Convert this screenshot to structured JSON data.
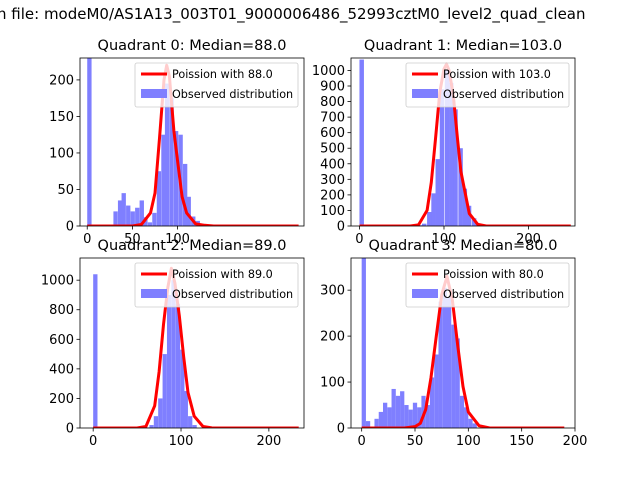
{
  "figure": {
    "suptitle": "n file: modeM0/AS1A13_003T01_9000006486_52993cztM0_level2_quad_clean"
  },
  "colors": {
    "hist": "#7f7fff",
    "poisson": "#ff0000",
    "background": "#ffffff"
  },
  "chart_data": [
    {
      "type": "bar",
      "title": "Quadrant 0: Median=88.0",
      "xlim": [
        -8,
        240
      ],
      "ylim": [
        0,
        230
      ],
      "xticks": [
        0,
        50,
        100
      ],
      "yticks": [
        0,
        50,
        100,
        150,
        200
      ],
      "bin_width": 4.8,
      "hist": {
        "name": "Observed distribution",
        "x": [
          0,
          29,
          34,
          38,
          43,
          48,
          53,
          58,
          62,
          67,
          72,
          77,
          82,
          86,
          91,
          96,
          101,
          106,
          110,
          115,
          120,
          125,
          130,
          134,
          139
        ],
        "y": [
          230,
          20,
          35,
          45,
          28,
          20,
          25,
          35,
          12,
          5,
          18,
          75,
          125,
          195,
          175,
          130,
          125,
          85,
          40,
          13,
          7,
          3,
          2,
          1,
          1
        ]
      },
      "poisson": {
        "name": "Poission with 88.0",
        "x": [
          0,
          50,
          60,
          70,
          75,
          80,
          85,
          88,
          91,
          96,
          100,
          105,
          110,
          120,
          130,
          140,
          150,
          160,
          200,
          234
        ],
        "y": [
          0,
          0,
          2,
          18,
          45,
          120,
          200,
          220,
          205,
          130,
          90,
          40,
          18,
          3,
          1,
          0,
          0,
          0,
          0,
          0
        ]
      }
    },
    {
      "type": "bar",
      "title": "Quadrant 1: Median=103.0",
      "xlim": [
        -10,
        255
      ],
      "ylim": [
        0,
        1080
      ],
      "xticks": [
        0,
        100,
        200
      ],
      "yticks": [
        0,
        100,
        200,
        300,
        400,
        500,
        600,
        700,
        800,
        900,
        1000
      ],
      "bin_width": 5.3,
      "hist": {
        "name": "Observed distribution",
        "x": [
          0,
          69,
          74,
          80,
          85,
          90,
          95,
          101,
          106,
          111,
          117,
          122,
          127,
          133,
          138
        ],
        "y": [
          1070,
          5,
          15,
          90,
          210,
          430,
          880,
          1000,
          920,
          750,
          500,
          240,
          130,
          50,
          12
        ]
      },
      "poisson": {
        "name": "Poission with 103.0",
        "x": [
          0,
          60,
          70,
          80,
          85,
          90,
          95,
          100,
          103,
          106,
          111,
          116,
          120,
          130,
          140,
          150,
          200,
          250
        ],
        "y": [
          0,
          0,
          8,
          100,
          280,
          560,
          860,
          1010,
          1040,
          1000,
          840,
          560,
          350,
          80,
          10,
          0,
          0,
          0
        ]
      }
    },
    {
      "type": "bar",
      "title": "Quadrant 2: Median=89.0",
      "xlim": [
        -15,
        240
      ],
      "ylim": [
        0,
        1150
      ],
      "xticks": [
        0,
        100,
        200
      ],
      "yticks": [
        0,
        200,
        400,
        600,
        800,
        1000
      ],
      "bin_width": 4.9,
      "hist": {
        "name": "Observed distribution",
        "x": [
          0,
          59,
          64,
          69,
          74,
          79,
          84,
          89,
          94,
          99,
          103,
          108,
          113
        ],
        "y": [
          1040,
          4,
          20,
          80,
          200,
          500,
          900,
          1000,
          840,
          530,
          250,
          80,
          20
        ]
      },
      "poisson": {
        "name": "Poission with 89.0",
        "x": [
          0,
          50,
          60,
          70,
          75,
          80,
          85,
          89,
          93,
          98,
          103,
          108,
          115,
          125,
          135,
          150,
          200,
          234
        ],
        "y": [
          0,
          0,
          10,
          150,
          380,
          700,
          950,
          1080,
          980,
          760,
          480,
          240,
          80,
          10,
          1,
          0,
          0,
          0
        ]
      }
    },
    {
      "type": "bar",
      "title": "Quadrant 3: Median=80.0",
      "xlim": [
        -10,
        200
      ],
      "ylim": [
        0,
        370
      ],
      "xticks": [
        0,
        50,
        100,
        150,
        200
      ],
      "yticks": [
        0,
        100,
        200,
        300
      ],
      "bin_width": 4.0,
      "hist": {
        "name": "Observed distribution",
        "x": [
          0,
          4,
          12,
          16,
          20,
          24,
          28,
          32,
          36,
          40,
          44,
          48,
          52,
          56,
          60,
          64,
          68,
          72,
          76,
          80,
          84,
          88,
          92,
          96,
          100,
          104
        ],
        "y": [
          370,
          15,
          20,
          35,
          55,
          45,
          85,
          70,
          80,
          50,
          40,
          55,
          45,
          70,
          50,
          110,
          160,
          275,
          305,
          285,
          225,
          195,
          70,
          45,
          20,
          10
        ]
      },
      "poisson": {
        "name": "Poission with 80.0",
        "x": [
          0,
          40,
          50,
          55,
          60,
          65,
          70,
          75,
          80,
          85,
          90,
          95,
          100,
          110,
          120,
          130,
          150,
          190
        ],
        "y": [
          0,
          0,
          3,
          10,
          40,
          110,
          200,
          290,
          330,
          280,
          180,
          90,
          35,
          5,
          0,
          0,
          0,
          0
        ]
      }
    }
  ]
}
